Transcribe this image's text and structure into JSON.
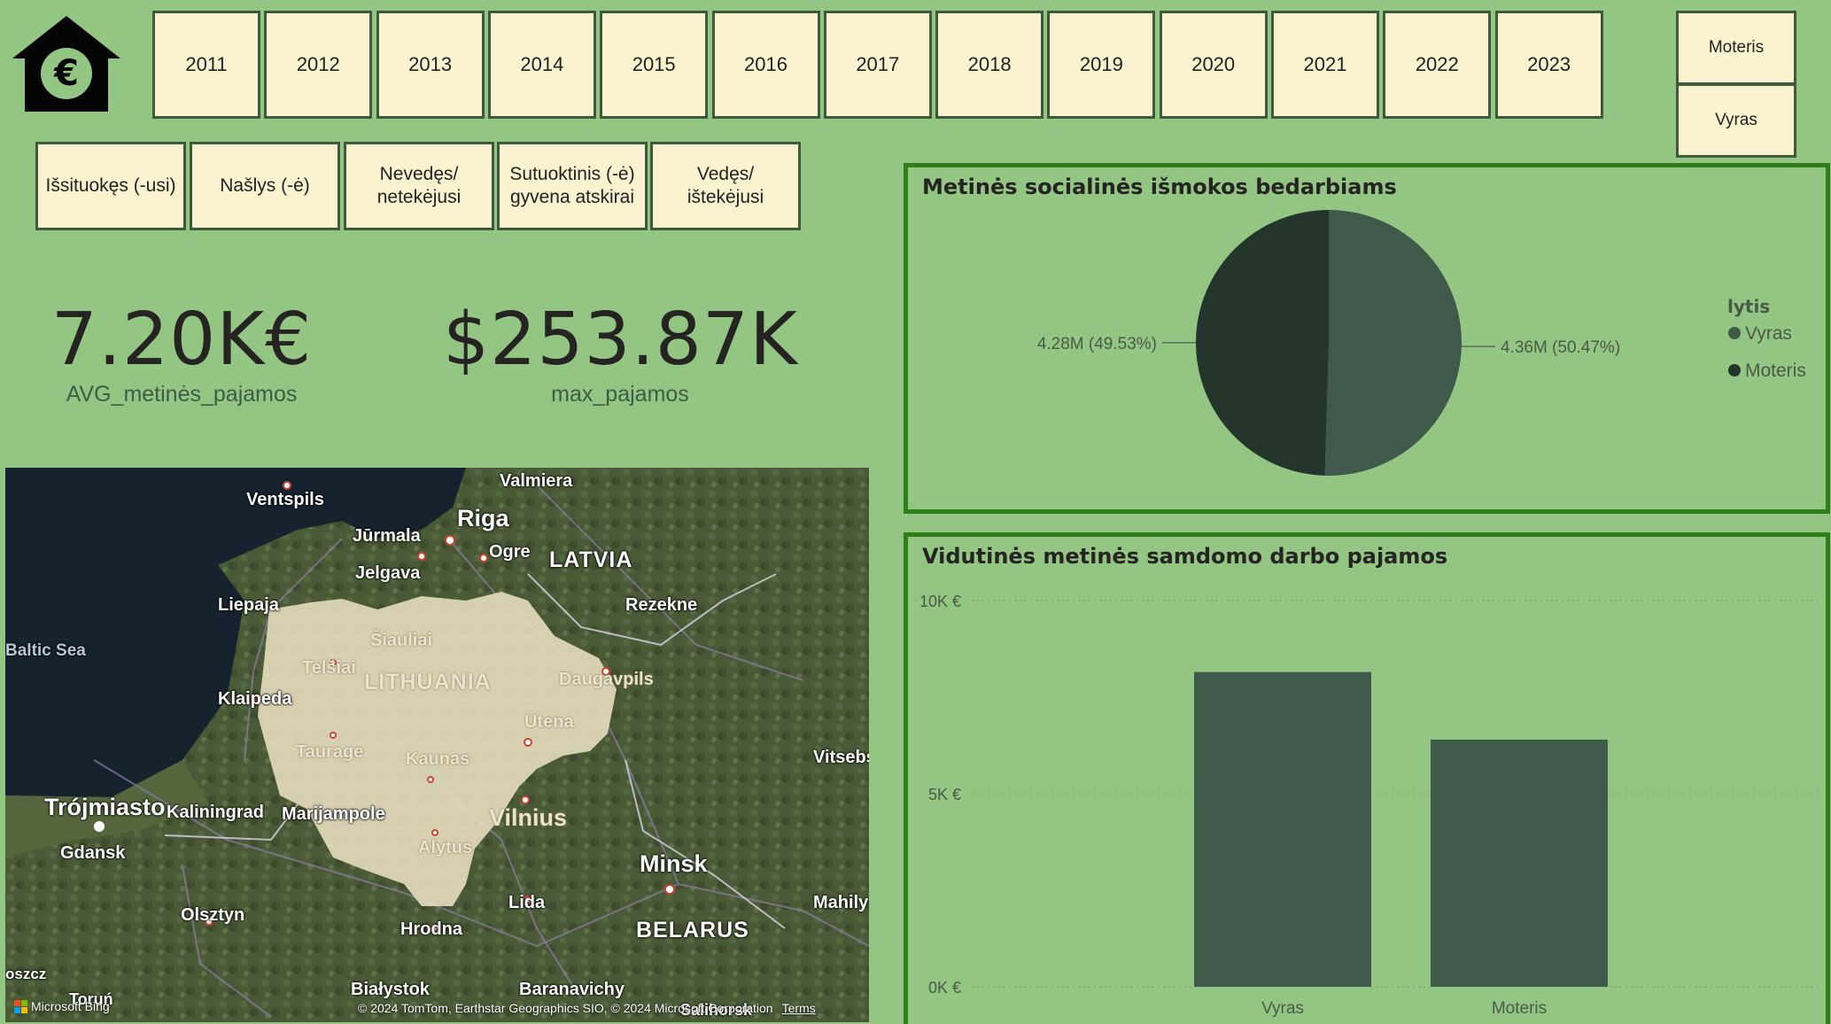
{
  "app": {
    "logo_icon": "euro-house-icon"
  },
  "years": [
    "2011",
    "2012",
    "2013",
    "2014",
    "2015",
    "2016",
    "2017",
    "2018",
    "2019",
    "2020",
    "2021",
    "2022",
    "2023"
  ],
  "gender_buttons": [
    "Moteris",
    "Vyras"
  ],
  "marital_status": [
    "Išsituokęs (-usi)",
    "Našlys (-ė)",
    "Nevedęs/ netekėjusi",
    "Sutuoktinis (-ė) gyvena atskirai",
    "Vedęs/ ištekėjusi"
  ],
  "kpis": [
    {
      "value": "7.20K€",
      "label": "AVG_metinės_pajamos"
    },
    {
      "value": "$253.87K",
      "label": "max_pajamos"
    }
  ],
  "map": {
    "labels": {
      "valmiera": "Valmiera",
      "ventspils": "Ventspils",
      "riga": "Riga",
      "jurmala": "Jūrmala",
      "ogre": "Ogre",
      "latvia": "LATVIA",
      "jelgava": "Jelgava",
      "liepaja": "Liepaja",
      "rezekne": "Rezekne",
      "baltic_sea": "Baltic Sea",
      "siauliai": "Šiauliai",
      "telsiai": "Telšiai",
      "lithuania": "LITHUANIA",
      "daugavpils": "Daugavpils",
      "klaipeda": "Klaipeda",
      "utena": "Utena",
      "taurage": "Taurage",
      "kaunas": "Kaunas",
      "vitsebsk": "Vitsebs",
      "trojmiasto": "Trójmiasto",
      "kaliningrad": "Kaliningrad",
      "marijampole": "Marijampole",
      "vilnius": "Vilnius",
      "gdansk": "Gdansk",
      "alytus": "Alytus",
      "minsk": "Minsk",
      "lida": "Lida",
      "mahily": "Mahily",
      "olsztyn": "Olsztyn",
      "hrodna": "Hrodna",
      "belarus": "BELARUS",
      "bydgoszcz": "oszcz",
      "bialystok": "Białystok",
      "baranavichy": "Baranavichy",
      "torun": "Toruń",
      "salihorsk": "Salihorsk"
    },
    "attribution": "© 2024 TomTom, Earthstar Geographics SIO, © 2024 Microsoft Corporation",
    "terms": "Terms",
    "provider": "Microsoft Bing"
  },
  "colors": {
    "background": "#94c683",
    "button_fill": "#fbf2cf",
    "panel_border": "#2f7d1b",
    "vyras": "#3f5a4a",
    "moteris": "#24362b",
    "lithuania_fill": "#e9dfc2"
  },
  "pie_panel": {
    "title": "Metinės socialinės išmokos bedarbiams",
    "legend_title": "lytis"
  },
  "bar_panel": {
    "title": "Vidutinės metinės samdomo darbo pajamos"
  },
  "chart_data": [
    {
      "type": "pie",
      "title": "Metinės socialinės išmokos bedarbiams",
      "legend_title": "lytis",
      "legend_position": "right",
      "slices": [
        {
          "name": "Vyras",
          "value": 4.36,
          "label": "4.36M (50.47%)"
        },
        {
          "name": "Moteris",
          "value": 4.28,
          "label": "4.28M (49.53%)"
        }
      ]
    },
    {
      "type": "bar",
      "title": "Vidutinės metinės samdomo darbo pajamos",
      "categories": [
        "Vyras",
        "Moteris"
      ],
      "values": [
        8150,
        6400
      ],
      "ylim": [
        0,
        10000
      ],
      "yticks": [
        {
          "value": 10000,
          "label": "10K €"
        },
        {
          "value": 5000,
          "label": "5K €"
        },
        {
          "value": 0,
          "label": "0K €"
        }
      ],
      "grid": true
    }
  ]
}
